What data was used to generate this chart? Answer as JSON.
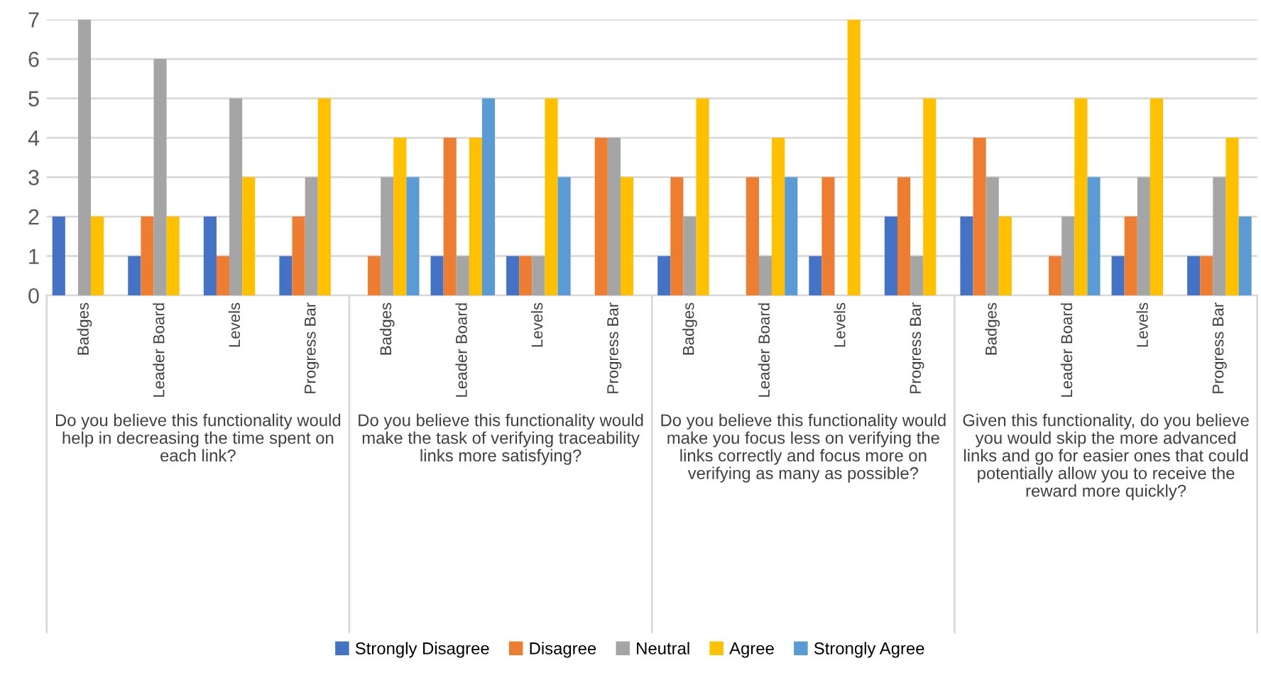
{
  "chart_data": {
    "type": "bar",
    "categories": [
      "Badges",
      "Leader Board",
      "Levels",
      "Progress Bar",
      "Badges",
      "Leader Board",
      "Levels",
      "Progress Bar",
      "Badges",
      "Leader Board",
      "Levels",
      "Progress Bar",
      "Badges",
      "Leader Board",
      "Levels",
      "Progress Bar"
    ],
    "series": [
      {
        "name": "Strongly Disagree",
        "color": "#4472c4",
        "values": [
          2,
          1,
          2,
          1,
          0,
          1,
          1,
          0,
          1,
          0,
          1,
          2,
          2,
          0,
          1,
          1
        ]
      },
      {
        "name": "Disagree",
        "color": "#ed7d31",
        "values": [
          0,
          2,
          1,
          2,
          1,
          4,
          1,
          4,
          3,
          3,
          3,
          3,
          4,
          1,
          2,
          1
        ]
      },
      {
        "name": "Neutral",
        "color": "#a5a5a5",
        "values": [
          7,
          6,
          5,
          3,
          3,
          1,
          1,
          4,
          2,
          1,
          0,
          1,
          3,
          2,
          3,
          3
        ]
      },
      {
        "name": "Agree",
        "color": "#ffc000",
        "values": [
          2,
          2,
          3,
          5,
          4,
          4,
          5,
          3,
          5,
          4,
          7,
          5,
          2,
          5,
          5,
          4
        ]
      },
      {
        "name": "Strongly Agree",
        "color": "#5b9bd5",
        "values": [
          0,
          0,
          0,
          0,
          3,
          5,
          3,
          0,
          0,
          3,
          0,
          0,
          0,
          3,
          0,
          2
        ]
      }
    ],
    "annotations": [
      "Do you believe this functionality would help in decreasing the time spent on each link?",
      "Do you believe this functionality would make the task of verifying traceability links more satisfying?",
      "Do you believe this functionality would make you focus less on verifying the links correctly and focus more on verifying as many as possible?",
      "Given this functionality, do you believe you would skip the more advanced links and go for easier ones that could potentially allow you to receive the reward more quickly?"
    ],
    "ylim": [
      0,
      7
    ],
    "yticks": [
      0,
      1,
      2,
      3,
      4,
      5,
      6,
      7
    ],
    "grid": "y",
    "legend": "bottom"
  }
}
